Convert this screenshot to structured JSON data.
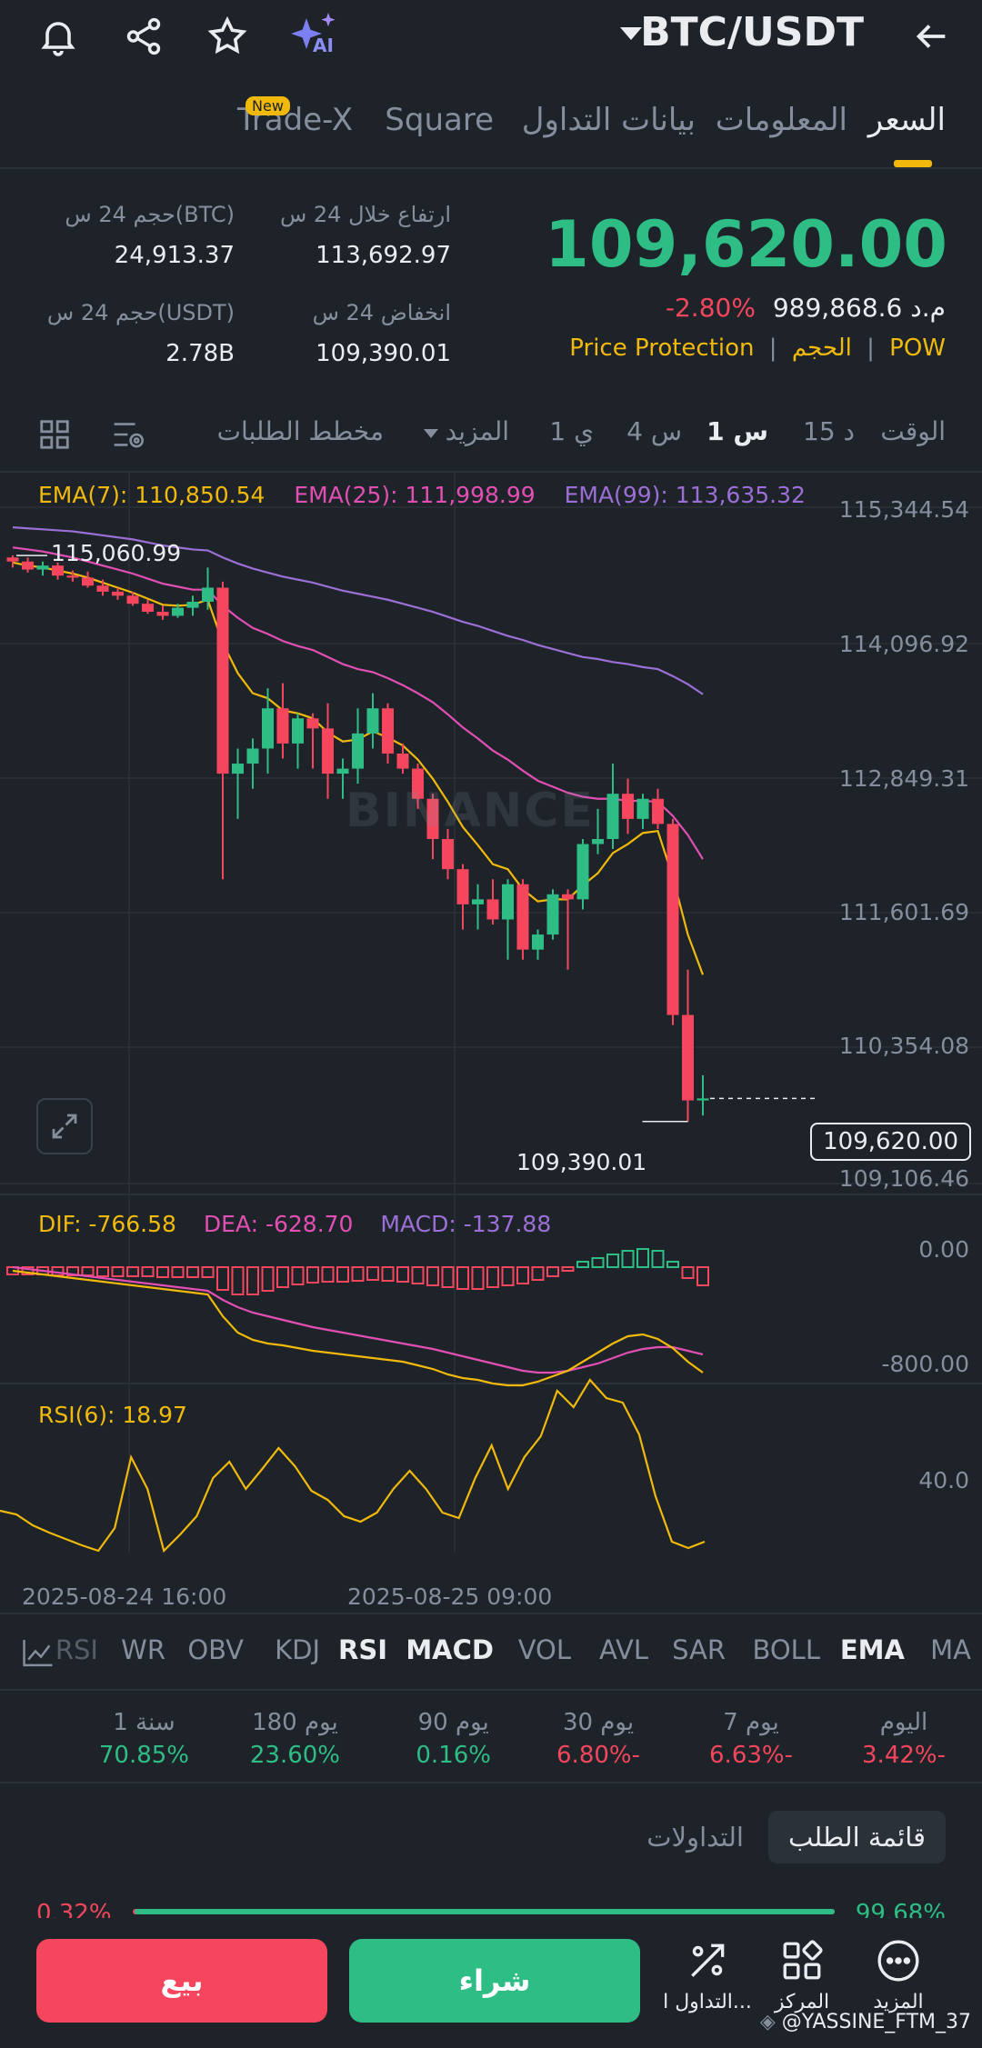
{
  "header": {
    "pair": "BTC/USDT",
    "icons": [
      "bell-icon",
      "share-icon",
      "star-icon",
      "ai-sparkle-icon",
      "back-arrow-icon"
    ],
    "ai_label": "AI"
  },
  "tabs": [
    {
      "label": "السعر",
      "active": true
    },
    {
      "label": "المعلومات",
      "active": false
    },
    {
      "label": "بيانات التداول",
      "active": false
    },
    {
      "label": "Square",
      "active": false
    },
    {
      "label": "Trade-X",
      "active": false,
      "badge": "New"
    }
  ],
  "price": {
    "last": "109,620.00",
    "change_pct": "-2.80%",
    "local_value": "989,868.6",
    "local_currency": "م.د",
    "tags": [
      "POW",
      "الحجم",
      "Price Protection"
    ]
  },
  "stats": {
    "high_label": "ارتفاع خلال 24 س",
    "high_value": "113,692.97",
    "low_label": "انخفاض 24 س",
    "low_value": "109,390.01",
    "vol_btc_label": "حجم 24 س(BTC)",
    "vol_btc_value": "24,913.37",
    "vol_usdt_label": "حجم 24 س(USDT)",
    "vol_usdt_value": "2.78B"
  },
  "timeframes": {
    "time_label": "الوقت",
    "items": [
      "15 د",
      "1 س",
      "4 س",
      "1 ي",
      "المزيد"
    ],
    "active": "1 س",
    "depth_label": "مخطط الطلبات"
  },
  "chart": {
    "ema7": "EMA(7): 110,850.54",
    "ema25": "EMA(25): 111,998.99",
    "ema99": "EMA(99): 113,635.32",
    "y_labels": [
      "115,344.54",
      "114,096.92",
      "112,849.31",
      "111,601.69",
      "110,354.08",
      "109,106.46"
    ],
    "high_marker": "115,060.99",
    "low_marker": "109,390.01",
    "current_price": "109,620.00",
    "watermark": "BINANCE",
    "x_labels": [
      "2025-08-24 16:00",
      "2025-08-25 09:00"
    ],
    "colors": {
      "up": "#2ebd85",
      "down": "#f6465d",
      "ema7": "#f0b90b",
      "ema25": "#e24fb3",
      "ema99": "#9b6fd6"
    }
  },
  "chart_data": {
    "type": "candlestick",
    "ylim": [
      108900,
      115500
    ],
    "candles": [
      [
        115000,
        115020,
        114900,
        114960
      ],
      [
        114960,
        115000,
        114850,
        114880
      ],
      [
        114880,
        114960,
        114820,
        114920
      ],
      [
        114920,
        114950,
        114780,
        114820
      ],
      [
        114820,
        114870,
        114760,
        114800
      ],
      [
        114800,
        114860,
        114700,
        114720
      ],
      [
        114720,
        114780,
        114620,
        114660
      ],
      [
        114660,
        114700,
        114580,
        114620
      ],
      [
        114620,
        114660,
        114520,
        114540
      ],
      [
        114540,
        114580,
        114440,
        114460
      ],
      [
        114460,
        114520,
        114380,
        114420
      ],
      [
        114420,
        114540,
        114400,
        114500
      ],
      [
        114500,
        114620,
        114420,
        114560
      ],
      [
        114560,
        114900,
        114480,
        114700
      ],
      [
        114700,
        114760,
        111800,
        112850
      ],
      [
        112850,
        113100,
        112400,
        112950
      ],
      [
        112950,
        113200,
        112700,
        113100
      ],
      [
        113100,
        113700,
        112850,
        113500
      ],
      [
        113500,
        113750,
        113000,
        113150
      ],
      [
        113150,
        113450,
        112900,
        113400
      ],
      [
        113400,
        113450,
        112900,
        113300
      ],
      [
        113300,
        113550,
        112600,
        112850
      ],
      [
        112850,
        113000,
        112600,
        112900
      ],
      [
        112900,
        113500,
        112750,
        113250
      ],
      [
        113250,
        113650,
        113100,
        113500
      ],
      [
        113500,
        113550,
        112950,
        113050
      ],
      [
        113050,
        113150,
        112850,
        112900
      ],
      [
        112900,
        112950,
        112500,
        112600
      ],
      [
        112600,
        112650,
        112000,
        112200
      ],
      [
        112200,
        112300,
        111800,
        111900
      ],
      [
        111900,
        111950,
        111300,
        111550
      ],
      [
        111550,
        111750,
        111300,
        111600
      ],
      [
        111600,
        111800,
        111350,
        111400
      ],
      [
        111400,
        111800,
        111000,
        111750
      ],
      [
        111750,
        111800,
        111000,
        111100
      ],
      [
        111100,
        111300,
        111000,
        111250
      ],
      [
        111250,
        111700,
        111200,
        111650
      ],
      [
        111650,
        111700,
        110900,
        111600
      ],
      [
        111600,
        112200,
        111500,
        112150
      ],
      [
        112150,
        112500,
        112050,
        112200
      ],
      [
        112200,
        112950,
        112100,
        112650
      ],
      [
        112650,
        112800,
        112250,
        112400
      ],
      [
        112400,
        112650,
        112300,
        112600
      ],
      [
        112600,
        112700,
        112300,
        112350
      ],
      [
        112350,
        112400,
        110350,
        110450
      ],
      [
        110450,
        110900,
        109390,
        109600
      ],
      [
        109600,
        109850,
        109450,
        109620
      ]
    ],
    "ema7": [
      114950,
      114920,
      114900,
      114870,
      114840,
      114800,
      114750,
      114700,
      114650,
      114590,
      114530,
      114520,
      114530,
      114580,
      114150,
      113850,
      113650,
      113600,
      113480,
      113450,
      113400,
      113260,
      113170,
      113190,
      113270,
      113210,
      113130,
      112990,
      112800,
      112570,
      112320,
      112140,
      111950,
      111900,
      111700,
      111580,
      111600,
      111600,
      111740,
      111860,
      112060,
      112150,
      112260,
      112280,
      111820,
      111250,
      110850
    ],
    "ema25": [
      115100,
      115080,
      115060,
      115030,
      115000,
      114960,
      114920,
      114880,
      114840,
      114790,
      114740,
      114710,
      114680,
      114680,
      114520,
      114400,
      114300,
      114240,
      114170,
      114120,
      114080,
      114010,
      113940,
      113890,
      113860,
      113800,
      113730,
      113650,
      113560,
      113440,
      113310,
      113200,
      113080,
      112990,
      112880,
      112780,
      112720,
      112660,
      112620,
      112600,
      112600,
      112580,
      112580,
      112570,
      112430,
      112240,
      112000
    ],
    "ema99": [
      115300,
      115290,
      115280,
      115270,
      115260,
      115240,
      115220,
      115200,
      115180,
      115150,
      115120,
      115100,
      115080,
      115070,
      115000,
      114940,
      114890,
      114850,
      114810,
      114780,
      114750,
      114710,
      114670,
      114640,
      114610,
      114580,
      114540,
      114500,
      114460,
      114410,
      114360,
      114320,
      114270,
      114220,
      114180,
      114130,
      114090,
      114050,
      114010,
      113990,
      113960,
      113940,
      113910,
      113890,
      113820,
      113740,
      113640
    ]
  },
  "macd": {
    "dif": "DIF: -766.58",
    "dea": "DEA: -628.70",
    "macd": "MACD: -137.88",
    "y_labels": [
      "0.00",
      "-800.00"
    ]
  },
  "rsi": {
    "label": "RSI(6): 18.97",
    "y_label": "40.0"
  },
  "indicator_tabs": [
    "MA",
    "EMA",
    "BOLL",
    "SAR",
    "AVL",
    "VOL",
    "MACD",
    "RSI",
    "KDJ",
    "OBV",
    "WR",
    "RSI"
  ],
  "active_indicators": [
    "EMA",
    "MACD",
    "RSI"
  ],
  "performance": [
    {
      "label": "اليوم",
      "value": "3.42%-",
      "dir": "down"
    },
    {
      "label": "7 يوم",
      "value": "6.63%-",
      "dir": "down"
    },
    {
      "label": "30 يوم",
      "value": "6.80%-",
      "dir": "down"
    },
    {
      "label": "90 يوم",
      "value": "0.16%",
      "dir": "up"
    },
    {
      "label": "180 يوم",
      "value": "23.60%",
      "dir": "up"
    },
    {
      "label": "1 سنة",
      "value": "70.85%",
      "dir": "up"
    }
  ],
  "orderbook": {
    "tab_book": "قائمة الطلب",
    "tab_trades": "التداولات",
    "buy_pct": "99.68%",
    "sell_pct": "0.32%",
    "buy_ratio": 0.9968
  },
  "bottom": {
    "sell": "بيع",
    "buy": "شراء",
    "nav": [
      {
        "label": "المزيد",
        "icon": "more-dots-icon"
      },
      {
        "label": "المركز",
        "icon": "grid-icon"
      },
      {
        "label": "التداول ا...",
        "icon": "trade-icon"
      }
    ],
    "watermark_user": "@YASSINE_FTM_37"
  }
}
